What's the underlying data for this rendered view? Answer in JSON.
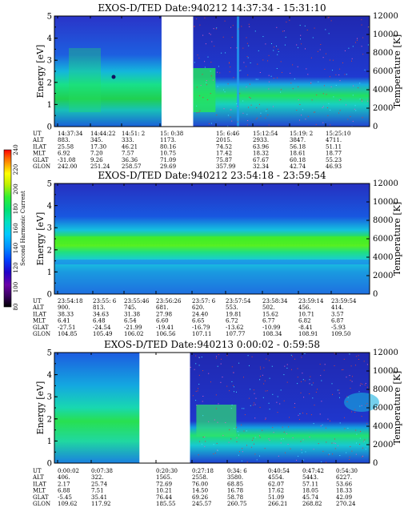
{
  "colorbar": {
    "label": "Second Harmonic Current",
    "ticks": [
      "240",
      "220",
      "200",
      "180",
      "160",
      "140",
      "120",
      "100",
      "80"
    ],
    "colors": [
      "#000000",
      "#3a0060",
      "#6a00a8",
      "#2000c8",
      "#0040ff",
      "#0090ff",
      "#00c8ff",
      "#00e0c0",
      "#00e070",
      "#30f030",
      "#c0f000",
      "#ffff00",
      "#ffb000",
      "#ff6000",
      "#ff0000"
    ]
  },
  "chart_data": [
    {
      "type": "heatmap",
      "title": "EXOS-D/TED   Date:940212  14:37:34 - 15:31:10",
      "ylabel": "Energy [eV]",
      "ylabel_right": "Temperature [K]",
      "ylim": [
        0,
        5
      ],
      "ylim_right": [
        0,
        12000
      ],
      "y_ticks": [
        "0",
        "1",
        "2",
        "3",
        "4",
        "5"
      ],
      "y_ticks_right": [
        "0",
        "2000",
        "4000",
        "6000",
        "8000",
        "10000",
        "12000"
      ],
      "data_gap": [
        0.34,
        0.44
      ],
      "columns": [
        {
          "UT": "14:37:34",
          "ALT": "883.",
          "ILAT": "25.58",
          "MLT": "6.92",
          "GLAT": "-31.08",
          "GLON": "242.00"
        },
        {
          "UT": "14:44:22",
          "ALT": "345.",
          "ILAT": "17.30",
          "MLT": "7.20",
          "GLAT": "9.26",
          "GLON": "251.24"
        },
        {
          "UT": "14:51: 2",
          "ALT": "333.",
          "ILAT": "46.21",
          "MLT": "7.57",
          "GLAT": "36.36",
          "GLON": "258.57"
        },
        {
          "UT": "15: 0:38",
          "ALT": "1173.",
          "ILAT": "80.16",
          "MLT": "10.75",
          "GLAT": "71.09",
          "GLON": "29.69"
        },
        {
          "UT": "15: 6:46",
          "ALT": "2015.",
          "ILAT": "74.52",
          "MLT": "17.42",
          "GLAT": "75.87",
          "GLON": "357.99"
        },
        {
          "UT": "15:12:54",
          "ALT": "2933.",
          "ILAT": "63.96",
          "MLT": "18.32",
          "GLAT": "67.67",
          "GLON": "32.34"
        },
        {
          "UT": "15:19: 2",
          "ALT": "3847.",
          "ILAT": "56.18",
          "MLT": "18.61",
          "GLAT": "60.18",
          "GLON": "42.74"
        },
        {
          "UT": "15:25:10",
          "ALT": "4711.",
          "ILAT": "51.11",
          "MLT": "18.77",
          "GLAT": "55.23",
          "GLON": "46.93"
        }
      ]
    },
    {
      "type": "heatmap",
      "title": "EXOS-D/TED   Date:940212  23:54:18 - 23:59:54",
      "ylabel": "Energy [eV]",
      "ylabel_right": "Temperature [K]",
      "ylim": [
        0,
        5
      ],
      "ylim_right": [
        0,
        12000
      ],
      "y_ticks": [
        "0",
        "1",
        "2",
        "3",
        "4",
        "5"
      ],
      "y_ticks_right": [
        "0",
        "2000",
        "4000",
        "6000",
        "8000",
        "10000",
        "12000"
      ],
      "columns": [
        {
          "UT": "23:54:18",
          "ALT": "900.",
          "ILAT": "38.33",
          "MLT": "6.41",
          "GLAT": "-27.51",
          "GLON": "104.85"
        },
        {
          "UT": "23:55: 6",
          "ALT": "813.",
          "ILAT": "34.63",
          "MLT": "6.48",
          "GLAT": "-24.54",
          "GLON": "105.49"
        },
        {
          "UT": "23:55:46",
          "ALT": "745.",
          "ILAT": "31.38",
          "MLT": "6.54",
          "GLAT": "-21.99",
          "GLON": "106.02"
        },
        {
          "UT": "23:56:26",
          "ALT": "681.",
          "ILAT": "27.98",
          "MLT": "6.60",
          "GLAT": "-19.41",
          "GLON": "106.56"
        },
        {
          "UT": "23:57: 6",
          "ALT": "620.",
          "ILAT": "24.40",
          "MLT": "6.65",
          "GLAT": "-16.79",
          "GLON": "107.11"
        },
        {
          "UT": "23:57:54",
          "ALT": "553.",
          "ILAT": "19.81",
          "MLT": "6.72",
          "GLAT": "-13.62",
          "GLON": "107.77"
        },
        {
          "UT": "23:58:34",
          "ALT": "502.",
          "ILAT": "15.62",
          "MLT": "6.77",
          "GLAT": "-10.99",
          "GLON": "108.34"
        },
        {
          "UT": "23:59:14",
          "ALT": "456.",
          "ILAT": "10.71",
          "MLT": "6.82",
          "GLAT": "-8.41",
          "GLON": "108.91"
        },
        {
          "UT": "23:59:54",
          "ALT": "414.",
          "ILAT": "3.57",
          "MLT": "6.87",
          "GLAT": "-5.93",
          "GLON": "109.50"
        }
      ]
    },
    {
      "type": "heatmap",
      "title": "EXOS-D/TED   Date:940213   0:00:02 - 0:59:58",
      "ylabel": "Energy [eV]",
      "ylabel_right": "Temperature [K]",
      "ylim": [
        0,
        5
      ],
      "ylim_right": [
        0,
        12000
      ],
      "y_ticks": [
        "0",
        "1",
        "2",
        "3",
        "4",
        "5"
      ],
      "y_ticks_right": [
        "0",
        "2000",
        "4000",
        "6000",
        "8000",
        "10000",
        "12000"
      ],
      "data_gap": [
        0.27,
        0.43
      ],
      "columns": [
        {
          "UT": "0:00:02",
          "ALT": "406.",
          "ILAT": "2.17",
          "MLT": "6.88",
          "GLAT": "-5.45",
          "GLON": "109.62"
        },
        {
          "UT": "0:07:38",
          "ALT": "322.",
          "ILAT": "25.74",
          "MLT": "7.51",
          "GLAT": "35.41",
          "GLON": "117.92"
        },
        {
          "UT": "0:20:30",
          "ALT": "1565.",
          "ILAT": "72.69",
          "MLT": "10.21",
          "GLAT": "76.44",
          "GLON": "185.55"
        },
        {
          "UT": "0:27:18",
          "ALT": "2558.",
          "ILAT": "76.00",
          "MLT": "14.50",
          "GLAT": "69.26",
          "GLON": "245.57"
        },
        {
          "UT": "0:34: 6",
          "ALT": "3580.",
          "ILAT": "68.85",
          "MLT": "16.78",
          "GLAT": "58.78",
          "GLON": "260.75"
        },
        {
          "UT": "0:40:54",
          "ALT": "4554.",
          "ILAT": "62.07",
          "MLT": "17.62",
          "GLAT": "51.09",
          "GLON": "266.21"
        },
        {
          "UT": "0:47:42",
          "ALT": "5443.",
          "ILAT": "57.11",
          "MLT": "18.05",
          "GLAT": "45.74",
          "GLON": "268.82"
        },
        {
          "UT": "0:54:30",
          "ALT": "6227.",
          "ILAT": "53.66",
          "MLT": "18.33",
          "GLAT": "42.09",
          "GLON": "270.24"
        }
      ]
    }
  ],
  "row_labels": [
    "UT",
    "ALT",
    "ILAT",
    "MLT",
    "GLAT",
    "GLON"
  ]
}
